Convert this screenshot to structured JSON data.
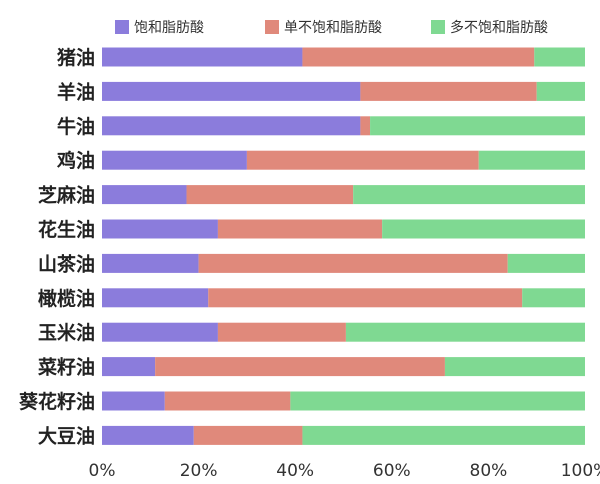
{
  "chart_data": {
    "type": "bar",
    "orientation": "horizontal",
    "stacked": true,
    "categories": [
      "猪油",
      "羊油",
      "牛油",
      "鸡油",
      "芝麻油",
      "花生油",
      "山茶油",
      "橄榄油",
      "玉米油",
      "菜籽油",
      "葵花籽油",
      "大豆油"
    ],
    "series": [
      {
        "name": "饱和脂肪酸",
        "color": "#8b7cdc",
        "values": [
          41.5,
          53.5,
          53.5,
          30,
          17.5,
          24,
          20,
          22,
          24,
          11,
          13,
          19
        ]
      },
      {
        "name": "单不饱和脂肪酸",
        "color": "#e0897b",
        "values": [
          48,
          36.5,
          2,
          48,
          34.5,
          34,
          64,
          65,
          26.5,
          60,
          26,
          22.5
        ]
      },
      {
        "name": "多不饱和脂肪酸",
        "color": "#7fd992",
        "values": [
          10.5,
          10,
          44.5,
          22,
          48,
          42,
          16,
          13,
          49.5,
          29,
          61,
          58.5
        ]
      }
    ],
    "xlim": [
      0,
      100
    ],
    "xticks": [
      "0%",
      "20%",
      "40%",
      "60%",
      "80%",
      "100%"
    ],
    "grid": false,
    "legend_position": "top"
  }
}
